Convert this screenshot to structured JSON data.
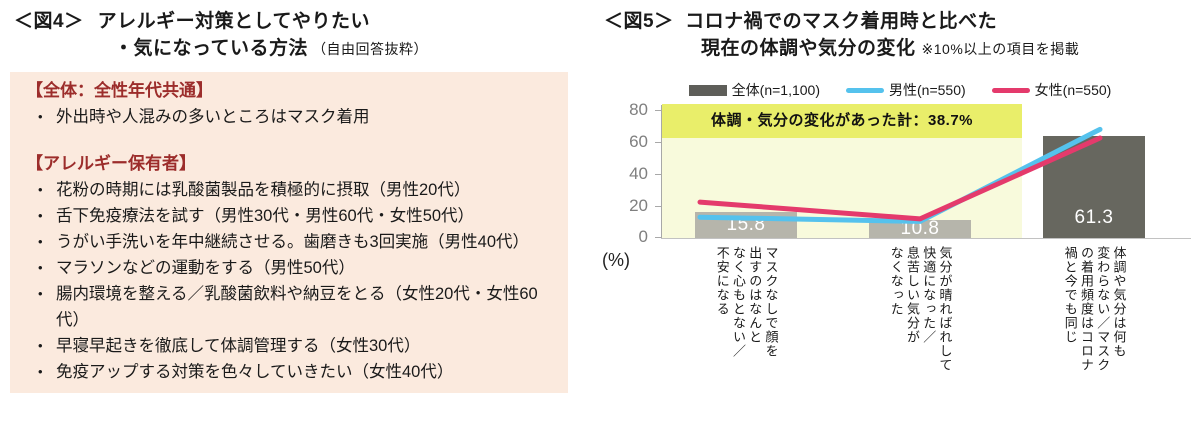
{
  "fig4": {
    "title_prefix": "＜図4＞",
    "title_line1": "アレルギー対策としてやりたい",
    "title_line2": "・気になっている方法",
    "title_note": "（自由回答抜粋）",
    "bullet_char": "•",
    "sections": [
      {
        "heading": "【全体：全性年代共通】",
        "items": [
          "外出時や人混みの多いところはマスク着用"
        ]
      },
      {
        "heading": "【アレルギー保有者】",
        "items": [
          "花粉の時期には乳酸菌製品を積極的に摂取（男性20代）",
          "舌下免疫療法を試す（男性30代・男性60代・女性50代）",
          "うがい手洗いを年中継続させる。歯磨きも3回実施（男性40代）",
          "マラソンなどの運動をする（男性50代）",
          "腸内環境を整える／乳酸菌飲料や納豆をとる（女性20代・女性60代）",
          "早寝早起きを徹底して体調管理する（女性30代）",
          "免疫アップする対策を色々していきたい（女性40代）"
        ]
      }
    ]
  },
  "fig5": {
    "title_prefix": "＜図5＞",
    "title_line1": "コロナ禍でのマスク着用時と比べた",
    "title_line2": "現在の体調や気分の変化",
    "title_note": "※10%以上の項目を掲載",
    "legend": [
      "全体(n=1,100)",
      "男性(n=550)",
      "女性(n=550)"
    ],
    "annotation": "体調・気分の変化があった計：38.7%",
    "axis_unit": "(%)",
    "ytick_labels": [
      "80",
      "60",
      "40",
      "20",
      "0"
    ],
    "category_labels": [
      "マスクなしで顔を\n出すのはなんと\nなく心もとない／\n不安になる",
      "気分が晴ればれして\n快適になった／\n息苦しい気分が\nなくなった",
      "体調や気分は何も\n変わらない／マスク\nの着用頻度はコロナ\n禍と今でも同じ"
    ]
  },
  "colors": {
    "total_bar_light": "#b6b5ab",
    "total_bar_dark": "#67675f",
    "legend_total_swatch": "#5e5e59",
    "male_line": "#55c2ed",
    "female_line": "#e43a6c",
    "annotation_bg": "#e9ee6a",
    "highlight_bg": "#f8fadc",
    "box_bg": "#fbeade",
    "heading_red": "#9c2d2b"
  },
  "chart_data": {
    "type": "bar",
    "note": "combo chart: bar series for total, line series for male/female; line values estimated from plot",
    "categories": [
      "マスクなしで顔を出すのはなんとなく心もとない／不安になる",
      "気分が晴ればれして快適になった／息苦しい気分がなくなった",
      "体調や気分は何も変わらない／マスクの着用頻度はコロナ禍と今でも同じ"
    ],
    "series": [
      {
        "name": "全体(n=1,100)",
        "kind": "bar",
        "values": [
          15.8,
          10.8,
          61.3
        ]
      },
      {
        "name": "男性(n=550)",
        "kind": "line",
        "values": [
          12,
          10,
          63.5
        ]
      },
      {
        "name": "女性(n=550)",
        "kind": "line",
        "values": [
          19.5,
          11.5,
          58.5
        ]
      }
    ],
    "ylabel": "(%)",
    "ylim": [
      0,
      80
    ],
    "yticks": [
      0,
      20,
      40,
      60,
      80
    ],
    "grid": false,
    "legend_position": "top",
    "annotation": "体調・気分の変化があった計：38.7%",
    "annotation_covers": [
      "category 1",
      "category 2"
    ]
  }
}
